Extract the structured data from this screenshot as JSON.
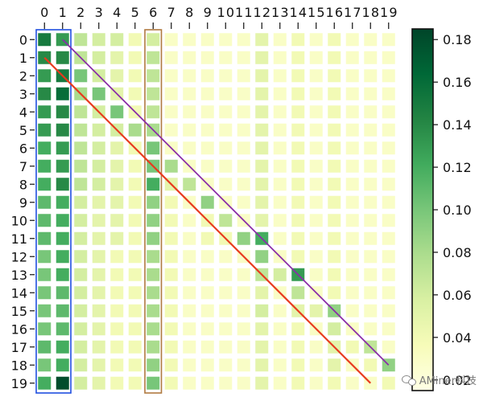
{
  "chart_data": {
    "type": "heatmap",
    "rows": [
      "0",
      "1",
      "2",
      "3",
      "4",
      "5",
      "6",
      "7",
      "8",
      "9",
      "10",
      "11",
      "12",
      "13",
      "14",
      "15",
      "16",
      "17",
      "18",
      "19"
    ],
    "columns": [
      "0",
      "1",
      "2",
      "3",
      "4",
      "5",
      "6",
      "7",
      "8",
      "9",
      "10",
      "11",
      "12",
      "13",
      "14",
      "15",
      "16",
      "17",
      "18",
      "19"
    ],
    "values": [
      [
        0.15,
        0.13,
        0.07,
        0.06,
        0.06,
        0.04,
        0.06,
        0.03,
        0.03,
        0.03,
        0.03,
        0.03,
        0.05,
        0.03,
        0.04,
        0.03,
        0.04,
        0.03,
        0.03,
        0.03
      ],
      [
        0.14,
        0.14,
        0.07,
        0.06,
        0.05,
        0.04,
        0.07,
        0.03,
        0.03,
        0.03,
        0.03,
        0.03,
        0.05,
        0.03,
        0.04,
        0.03,
        0.04,
        0.03,
        0.03,
        0.03
      ],
      [
        0.13,
        0.15,
        0.1,
        0.06,
        0.05,
        0.04,
        0.07,
        0.03,
        0.03,
        0.03,
        0.03,
        0.03,
        0.05,
        0.03,
        0.04,
        0.03,
        0.04,
        0.03,
        0.03,
        0.03
      ],
      [
        0.14,
        0.16,
        0.08,
        0.1,
        0.05,
        0.04,
        0.07,
        0.03,
        0.03,
        0.03,
        0.03,
        0.03,
        0.05,
        0.03,
        0.04,
        0.03,
        0.04,
        0.03,
        0.03,
        0.03
      ],
      [
        0.13,
        0.14,
        0.07,
        0.06,
        0.1,
        0.04,
        0.07,
        0.03,
        0.03,
        0.03,
        0.03,
        0.03,
        0.05,
        0.03,
        0.04,
        0.03,
        0.04,
        0.03,
        0.03,
        0.03
      ],
      [
        0.13,
        0.14,
        0.07,
        0.06,
        0.06,
        0.08,
        0.08,
        0.03,
        0.03,
        0.03,
        0.03,
        0.03,
        0.05,
        0.03,
        0.04,
        0.03,
        0.04,
        0.03,
        0.03,
        0.03
      ],
      [
        0.12,
        0.13,
        0.07,
        0.06,
        0.05,
        0.04,
        0.1,
        0.03,
        0.03,
        0.03,
        0.03,
        0.03,
        0.05,
        0.03,
        0.04,
        0.03,
        0.04,
        0.03,
        0.03,
        0.03
      ],
      [
        0.12,
        0.13,
        0.07,
        0.06,
        0.05,
        0.04,
        0.1,
        0.08,
        0.03,
        0.03,
        0.03,
        0.03,
        0.05,
        0.03,
        0.04,
        0.03,
        0.04,
        0.03,
        0.03,
        0.03
      ],
      [
        0.12,
        0.14,
        0.07,
        0.06,
        0.05,
        0.04,
        0.12,
        0.05,
        0.07,
        0.03,
        0.03,
        0.03,
        0.05,
        0.03,
        0.04,
        0.03,
        0.04,
        0.03,
        0.03,
        0.03
      ],
      [
        0.11,
        0.12,
        0.06,
        0.05,
        0.05,
        0.04,
        0.09,
        0.04,
        0.03,
        0.09,
        0.03,
        0.03,
        0.05,
        0.03,
        0.04,
        0.03,
        0.04,
        0.03,
        0.03,
        0.03
      ],
      [
        0.11,
        0.12,
        0.06,
        0.05,
        0.05,
        0.04,
        0.09,
        0.04,
        0.03,
        0.04,
        0.07,
        0.03,
        0.05,
        0.03,
        0.04,
        0.03,
        0.04,
        0.03,
        0.03,
        0.03
      ],
      [
        0.11,
        0.12,
        0.06,
        0.05,
        0.05,
        0.04,
        0.09,
        0.04,
        0.03,
        0.04,
        0.04,
        0.09,
        0.12,
        0.03,
        0.04,
        0.03,
        0.04,
        0.03,
        0.03,
        0.03
      ],
      [
        0.1,
        0.12,
        0.06,
        0.05,
        0.04,
        0.04,
        0.08,
        0.04,
        0.03,
        0.03,
        0.03,
        0.03,
        0.09,
        0.03,
        0.04,
        0.03,
        0.04,
        0.03,
        0.03,
        0.03
      ],
      [
        0.1,
        0.12,
        0.06,
        0.05,
        0.04,
        0.04,
        0.08,
        0.04,
        0.03,
        0.03,
        0.03,
        0.03,
        0.07,
        0.06,
        0.13,
        0.03,
        0.04,
        0.03,
        0.03,
        0.03
      ],
      [
        0.1,
        0.11,
        0.06,
        0.05,
        0.04,
        0.04,
        0.08,
        0.04,
        0.03,
        0.03,
        0.03,
        0.03,
        0.05,
        0.03,
        0.07,
        0.03,
        0.04,
        0.03,
        0.03,
        0.03
      ],
      [
        0.1,
        0.11,
        0.06,
        0.05,
        0.04,
        0.04,
        0.08,
        0.04,
        0.03,
        0.03,
        0.03,
        0.03,
        0.06,
        0.03,
        0.05,
        0.05,
        0.09,
        0.03,
        0.03,
        0.03
      ],
      [
        0.1,
        0.11,
        0.06,
        0.05,
        0.04,
        0.04,
        0.08,
        0.04,
        0.03,
        0.03,
        0.03,
        0.03,
        0.05,
        0.03,
        0.04,
        0.03,
        0.06,
        0.03,
        0.03,
        0.03
      ],
      [
        0.11,
        0.12,
        0.06,
        0.05,
        0.04,
        0.04,
        0.08,
        0.04,
        0.03,
        0.03,
        0.03,
        0.03,
        0.05,
        0.03,
        0.04,
        0.03,
        0.05,
        0.04,
        0.07,
        0.03
      ],
      [
        0.1,
        0.12,
        0.06,
        0.05,
        0.04,
        0.04,
        0.09,
        0.04,
        0.03,
        0.03,
        0.03,
        0.03,
        0.05,
        0.03,
        0.04,
        0.03,
        0.05,
        0.03,
        0.04,
        0.09
      ],
      [
        0.12,
        0.18,
        0.06,
        0.05,
        0.04,
        0.04,
        0.1,
        0.04,
        0.03,
        0.03,
        0.03,
        0.03,
        0.05,
        0.03,
        0.04,
        0.03,
        0.04,
        0.03,
        0.03,
        0.04
      ]
    ],
    "colorbar": {
      "min": 0.015,
      "max": 0.185,
      "ticks": [
        0.02,
        0.04,
        0.06,
        0.08,
        0.1,
        0.12,
        0.14,
        0.16,
        0.18
      ],
      "tick_labels": [
        "0.02",
        "0.04",
        "0.06",
        "0.08",
        "0.10",
        "0.12",
        "0.14",
        "0.16",
        "0.18"
      ],
      "colors": [
        "#ffffe5",
        "#f7fcb9",
        "#d9f0a3",
        "#addd8e",
        "#78c679",
        "#41ab5d",
        "#238443",
        "#006837",
        "#004529"
      ]
    },
    "annotations": {
      "highlight_columns": [
        {
          "from_col": 0,
          "to_col": 1,
          "color": "#1f4fe0"
        },
        {
          "from_col": 6,
          "to_col": 6,
          "color": "#b07a40"
        }
      ],
      "lines": [
        {
          "from": [
            1,
            0
          ],
          "to": [
            19,
            18
          ],
          "color": "#e8391d"
        },
        {
          "from": [
            0,
            1
          ],
          "to": [
            18,
            19
          ],
          "color": "#8a2ea8"
        }
      ]
    }
  },
  "watermark": {
    "text": "AMiner科技",
    "icon": "wechat-icon"
  }
}
